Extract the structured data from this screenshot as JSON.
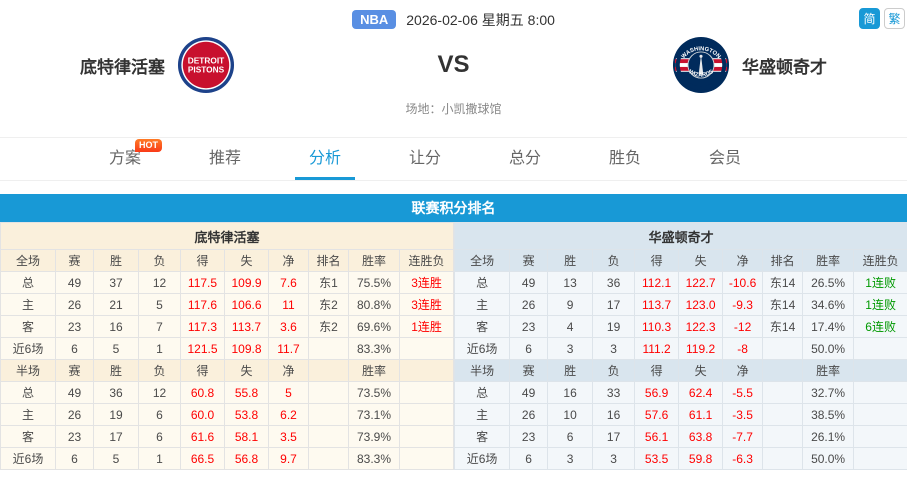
{
  "top": {
    "league_badge": "NBA",
    "datetime": "2026-02-06 星期五 8:00",
    "lang": {
      "simplified": "简",
      "traditional": "繁"
    }
  },
  "match": {
    "home_name": "底特律活塞",
    "away_name": "华盛顿奇才",
    "vs": "VS",
    "venue": "场地：小凯撒球馆",
    "home_logo_text": {
      "line1": "DETROIT",
      "line2": "PISTONS"
    },
    "away_logo_text": {
      "top": "WASHINGTON",
      "bottom": "WIZARDS"
    }
  },
  "nav": {
    "hot": "HOT",
    "active_index": 2,
    "tabs": [
      {
        "label": "方案"
      },
      {
        "label": "推荐"
      },
      {
        "label": "分析"
      },
      {
        "label": "让分"
      },
      {
        "label": "总分"
      },
      {
        "label": "胜负"
      },
      {
        "label": "会员"
      }
    ]
  },
  "section": {
    "title": "联赛积分排名"
  },
  "colors": {
    "accent_blue": "#1899d6",
    "home_tint": "#faf0dc",
    "away_tint": "#d9e5ee",
    "stat_red": "#ff0000",
    "streak_green": "#009900"
  },
  "standings": {
    "home": {
      "team": "底特律活塞",
      "full_headers": [
        "全场",
        "赛",
        "胜",
        "负",
        "得",
        "失",
        "净",
        "排名",
        "胜率",
        "连胜负"
      ],
      "full_rows": [
        [
          "总",
          "49",
          "37",
          "12",
          "117.5",
          "109.9",
          "7.6",
          "东1",
          "75.5%",
          "3连胜"
        ],
        [
          "主",
          "26",
          "21",
          "5",
          "117.6",
          "106.6",
          "11",
          "东2",
          "80.8%",
          "3连胜"
        ],
        [
          "客",
          "23",
          "16",
          "7",
          "117.3",
          "113.7",
          "3.6",
          "东2",
          "69.6%",
          "1连胜"
        ],
        [
          "近6场",
          "6",
          "5",
          "1",
          "121.5",
          "109.8",
          "11.7",
          "",
          "83.3%",
          ""
        ]
      ],
      "half_headers": [
        "半场",
        "赛",
        "胜",
        "负",
        "得",
        "失",
        "净",
        "",
        "胜率",
        ""
      ],
      "half_rows": [
        [
          "总",
          "49",
          "36",
          "12",
          "60.8",
          "55.8",
          "5",
          "",
          "73.5%",
          ""
        ],
        [
          "主",
          "26",
          "19",
          "6",
          "60.0",
          "53.8",
          "6.2",
          "",
          "73.1%",
          ""
        ],
        [
          "客",
          "23",
          "17",
          "6",
          "61.6",
          "58.1",
          "3.5",
          "",
          "73.9%",
          ""
        ],
        [
          "近6场",
          "6",
          "5",
          "1",
          "66.5",
          "56.8",
          "9.7",
          "",
          "83.3%",
          ""
        ]
      ]
    },
    "away": {
      "team": "华盛顿奇才",
      "full_headers": [
        "全场",
        "赛",
        "胜",
        "负",
        "得",
        "失",
        "净",
        "排名",
        "胜率",
        "连胜负"
      ],
      "full_rows": [
        [
          "总",
          "49",
          "13",
          "36",
          "112.1",
          "122.7",
          "-10.6",
          "东14",
          "26.5%",
          "1连败"
        ],
        [
          "主",
          "26",
          "9",
          "17",
          "113.7",
          "123.0",
          "-9.3",
          "东14",
          "34.6%",
          "1连败"
        ],
        [
          "客",
          "23",
          "4",
          "19",
          "110.3",
          "122.3",
          "-12",
          "东14",
          "17.4%",
          "6连败"
        ],
        [
          "近6场",
          "6",
          "3",
          "3",
          "111.2",
          "119.2",
          "-8",
          "",
          "50.0%",
          ""
        ]
      ],
      "half_headers": [
        "半场",
        "赛",
        "胜",
        "负",
        "得",
        "失",
        "净",
        "",
        "胜率",
        ""
      ],
      "half_rows": [
        [
          "总",
          "49",
          "16",
          "33",
          "56.9",
          "62.4",
          "-5.5",
          "",
          "32.7%",
          ""
        ],
        [
          "主",
          "26",
          "10",
          "16",
          "57.6",
          "61.1",
          "-3.5",
          "",
          "38.5%",
          ""
        ],
        [
          "客",
          "23",
          "6",
          "17",
          "56.1",
          "63.8",
          "-7.7",
          "",
          "26.1%",
          ""
        ],
        [
          "近6场",
          "6",
          "3",
          "3",
          "53.5",
          "59.8",
          "-6.3",
          "",
          "50.0%",
          ""
        ]
      ]
    }
  }
}
